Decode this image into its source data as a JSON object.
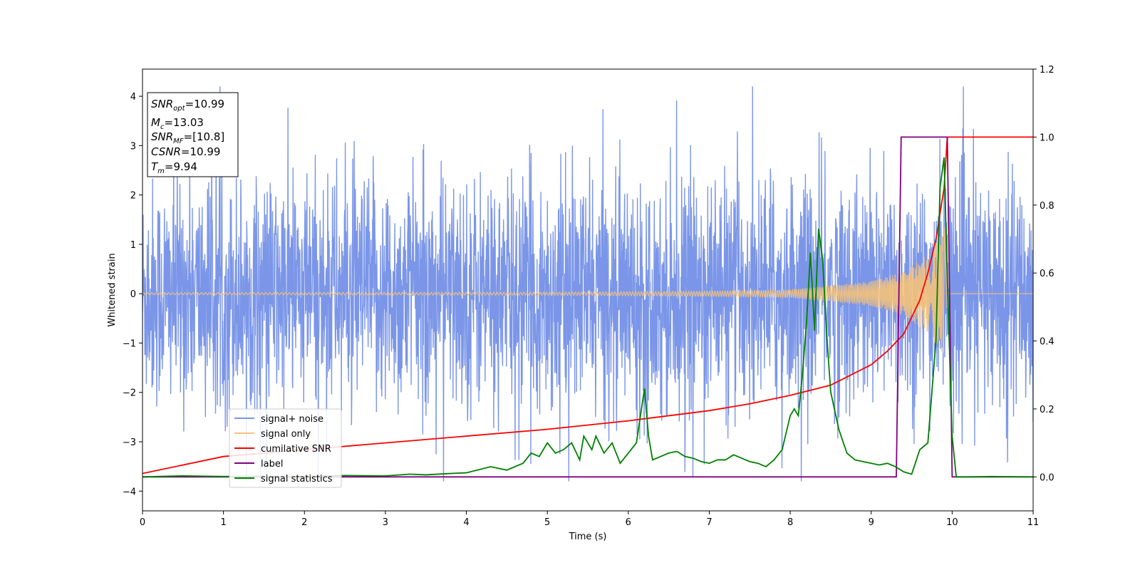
{
  "chart_data": {
    "type": "line",
    "title": "",
    "xlabel": "Time (s)",
    "ylabel": "Whitened strain",
    "xlim": [
      0,
      11
    ],
    "ylim": [
      -4.4,
      4.55
    ],
    "y2lim": [
      -0.1,
      1.2
    ],
    "xticks": [
      0,
      1,
      2,
      3,
      4,
      5,
      6,
      7,
      8,
      9,
      10,
      11
    ],
    "yticks": [
      -4,
      -3,
      -2,
      -1,
      0,
      1,
      2,
      3,
      4
    ],
    "y2ticks": [
      0.0,
      0.2,
      0.4,
      0.6,
      0.8,
      1.0,
      1.2
    ],
    "grid": false,
    "legend_position": "lower-left",
    "legend": [
      {
        "label": "signal+ noise",
        "color": "#7b96e8"
      },
      {
        "label": "signal only",
        "color": "#f5c27a"
      },
      {
        "label": "cumilative SNR",
        "color": "#ff0000"
      },
      {
        "label": "label",
        "color": "#800080"
      },
      {
        "label": "signal statistics",
        "color": "#008000"
      }
    ],
    "info_box": [
      {
        "base": "SNR",
        "sub": "opt",
        "value": "=10.99"
      },
      {
        "base": "M",
        "sub": "c",
        "value": "=13.03"
      },
      {
        "base": "SNR",
        "sub": "MF",
        "value": "=[10.8]"
      },
      {
        "base": "CSNR",
        "sub": "",
        "value": "=10.99"
      },
      {
        "base": "T",
        "sub": "m",
        "value": "=9.94"
      }
    ],
    "series": [
      {
        "name": "signal+ noise",
        "axis": "left",
        "color": "#7b96e8",
        "description_values": {
          "x_start": 0,
          "x_end": 11,
          "band_min": -3.8,
          "band_max": 4.2,
          "typical_abs": 2.5
        }
      },
      {
        "name": "signal only",
        "axis": "left",
        "color": "#f5c27a",
        "envelope": {
          "x": [
            0,
            5,
            7,
            8,
            9,
            9.4,
            9.7,
            9.9,
            9.94,
            10.0
          ],
          "amp": [
            0.02,
            0.03,
            0.05,
            0.08,
            0.25,
            0.45,
            0.8,
            1.3,
            1.8,
            0
          ]
        }
      },
      {
        "name": "cumilative SNR",
        "axis": "right",
        "x": [
          0,
          1,
          2,
          3,
          4,
          5,
          6,
          7,
          7.5,
          8,
          8.5,
          9,
          9.2,
          9.4,
          9.6,
          9.7,
          9.8,
          9.9,
          9.94,
          10,
          11
        ],
        "y": [
          0.01,
          0.06,
          0.08,
          0.1,
          0.12,
          0.14,
          0.165,
          0.195,
          0.215,
          0.24,
          0.27,
          0.33,
          0.37,
          0.42,
          0.52,
          0.6,
          0.7,
          0.85,
          1.0,
          1.0,
          1.0
        ]
      },
      {
        "name": "label",
        "axis": "right",
        "x": [
          0,
          9.31,
          9.37,
          9.94,
          10.0,
          11
        ],
        "y": [
          0,
          0,
          1,
          1,
          0,
          0
        ]
      },
      {
        "name": "signal statistics",
        "axis": "right",
        "x": [
          0,
          0.5,
          1,
          1.5,
          2,
          2.5,
          3,
          3.3,
          3.5,
          3.8,
          4,
          4.3,
          4.5,
          4.7,
          4.8,
          4.9,
          5.0,
          5.1,
          5.2,
          5.3,
          5.4,
          5.45,
          5.55,
          5.6,
          5.7,
          5.8,
          5.9,
          6.0,
          6.1,
          6.2,
          6.25,
          6.3,
          6.4,
          6.5,
          6.6,
          6.7,
          6.8,
          6.9,
          7.0,
          7.1,
          7.2,
          7.3,
          7.4,
          7.5,
          7.6,
          7.7,
          7.8,
          7.9,
          8.0,
          8.05,
          8.1,
          8.15,
          8.2,
          8.25,
          8.3,
          8.35,
          8.4,
          8.45,
          8.5,
          8.6,
          8.7,
          8.8,
          8.9,
          9.0,
          9.1,
          9.2,
          9.3,
          9.4,
          9.5,
          9.6,
          9.7,
          9.8,
          9.85,
          9.9,
          9.95,
          10.0,
          10.05,
          10.2,
          10.5,
          11
        ],
        "y": [
          0.0,
          0.003,
          0.001,
          0.002,
          0.001,
          0.004,
          0.003,
          0.008,
          0.006,
          0.01,
          0.012,
          0.03,
          0.02,
          0.04,
          0.07,
          0.06,
          0.1,
          0.07,
          0.08,
          0.1,
          0.05,
          0.12,
          0.08,
          0.12,
          0.07,
          0.1,
          0.04,
          0.07,
          0.1,
          0.26,
          0.12,
          0.05,
          0.06,
          0.07,
          0.075,
          0.06,
          0.055,
          0.045,
          0.04,
          0.05,
          0.05,
          0.065,
          0.055,
          0.045,
          0.04,
          0.03,
          0.05,
          0.08,
          0.18,
          0.2,
          0.18,
          0.3,
          0.45,
          0.66,
          0.43,
          0.73,
          0.64,
          0.42,
          0.25,
          0.14,
          0.07,
          0.05,
          0.045,
          0.04,
          0.035,
          0.04,
          0.03,
          0.015,
          0.008,
          0.08,
          0.1,
          0.4,
          0.85,
          0.94,
          0.5,
          0.12,
          0.0,
          0.0,
          0.001,
          0.0
        ]
      }
    ]
  }
}
